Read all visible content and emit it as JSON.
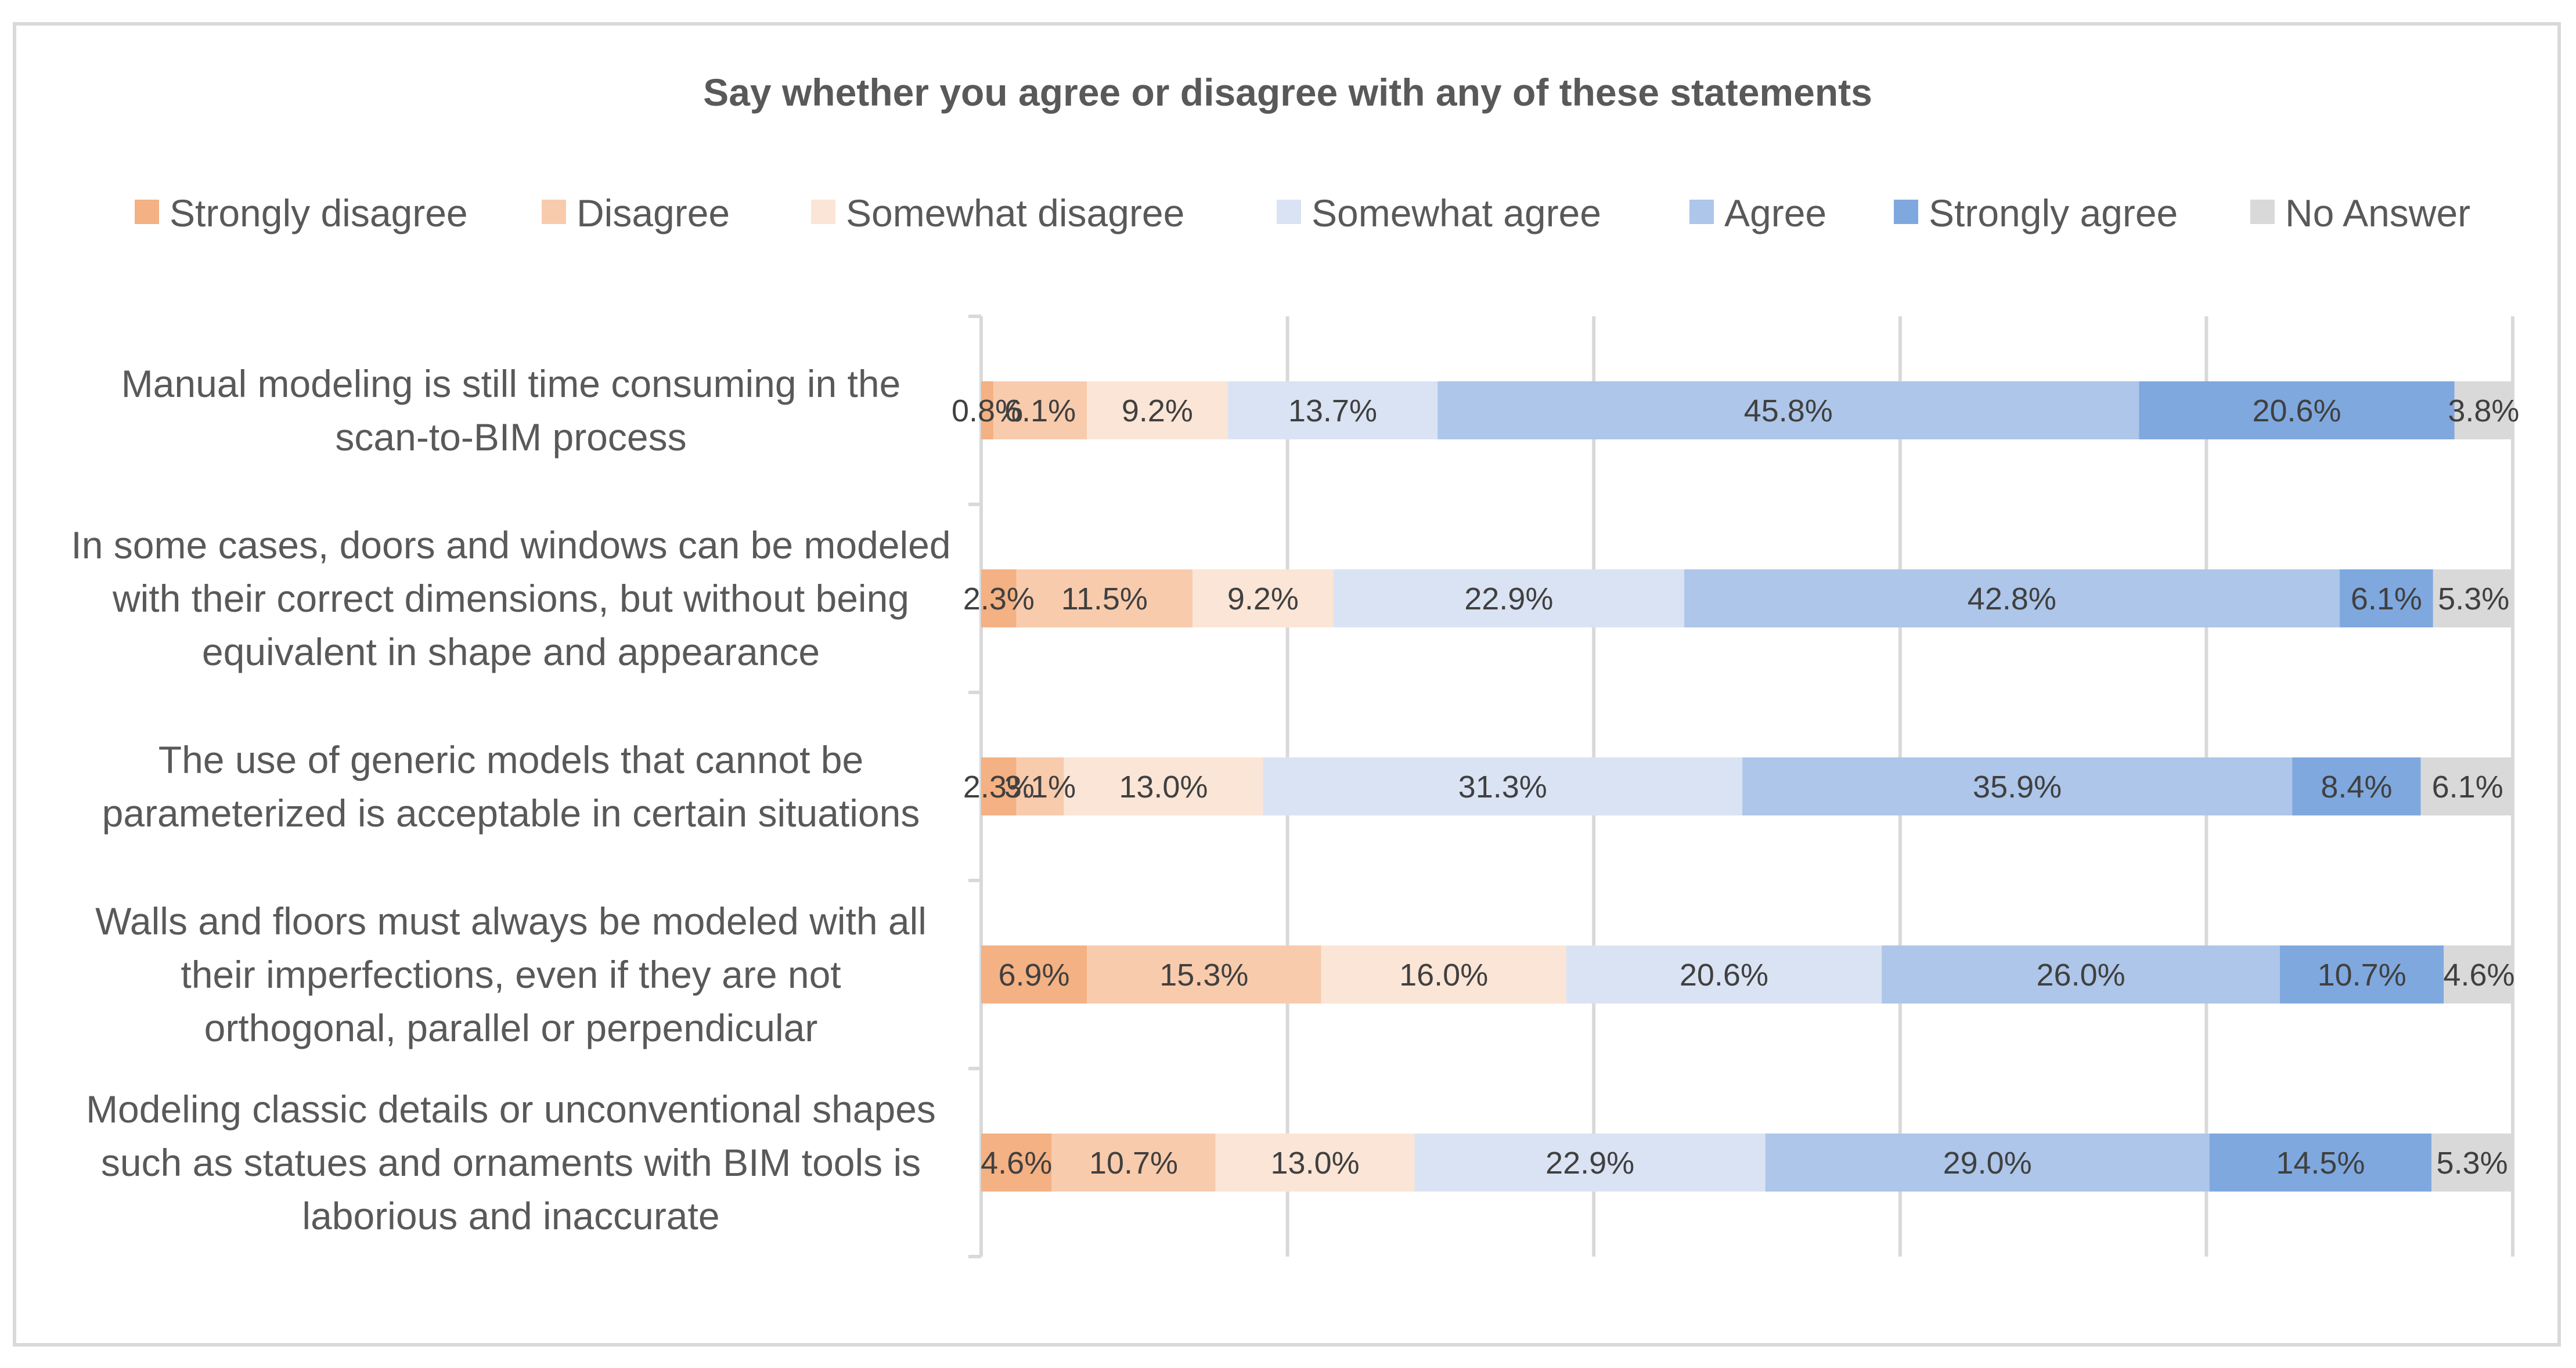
{
  "chart_data": {
    "type": "bar",
    "orientation": "horizontal",
    "stacked": "percent",
    "title": "Say whether you agree or disagree with any of these statements",
    "legend_position": "top",
    "grid": true,
    "xlim": [
      0,
      100
    ],
    "categories": [
      [
        "Manual modeling is still time consuming in the",
        "scan-to-BIM process"
      ],
      [
        "In some cases, doors and windows can be modeled",
        "with their correct dimensions, but without being",
        "equivalent in shape and appearance"
      ],
      [
        "The use of generic models that cannot be",
        "parameterized is acceptable in certain situations"
      ],
      [
        "Walls and floors must always be modeled with all",
        "their imperfections, even if they are not",
        "orthogonal, parallel or perpendicular"
      ],
      [
        "Modeling classic details or unconventional shapes",
        "such as statues and ornaments with BIM tools is",
        "laborious and inaccurate"
      ]
    ],
    "series": [
      {
        "name": "Strongly disagree",
        "color": "#f4b183",
        "values": [
          0.8,
          2.3,
          2.3,
          6.9,
          4.6
        ],
        "labels": [
          "0.8%",
          "2.3%",
          "2.3%",
          "6.9%",
          "4.6%"
        ]
      },
      {
        "name": "Disagree",
        "color": "#f8cbad",
        "values": [
          6.1,
          11.5,
          3.1,
          15.3,
          10.7
        ],
        "labels": [
          "6.1%",
          "11.5%",
          "3.1%",
          "15.3%",
          "10.7%"
        ]
      },
      {
        "name": "Somewhat disagree",
        "color": "#fbe5d6",
        "values": [
          9.2,
          9.2,
          13.0,
          16.0,
          13.0
        ],
        "labels": [
          "9.2%",
          "9.2%",
          "13.0%",
          "16.0%",
          "13.0%"
        ]
      },
      {
        "name": "Somewhat agree",
        "color": "#dae3f3",
        "values": [
          13.7,
          22.9,
          31.3,
          20.6,
          22.9
        ],
        "labels": [
          "13.7%",
          "22.9%",
          "31.3%",
          "20.6%",
          "22.9%"
        ]
      },
      {
        "name": "Agree",
        "color": "#adc6e9",
        "values": [
          45.8,
          42.8,
          35.9,
          26.0,
          29.0
        ],
        "labels": [
          "45.8%",
          "42.8%",
          "35.9%",
          "26.0%",
          "29.0%"
        ]
      },
      {
        "name": "Strongly agree",
        "color": "#7fa8de",
        "values": [
          20.6,
          6.1,
          8.4,
          10.7,
          14.5
        ],
        "labels": [
          "20.6%",
          "6.1%",
          "8.4%",
          "10.7%",
          "14.5%"
        ]
      },
      {
        "name": "No Answer",
        "color": "#d9d9d9",
        "values": [
          3.8,
          5.3,
          6.1,
          4.6,
          5.3
        ],
        "labels": [
          "3.8%",
          "5.3%",
          "6.1%",
          "4.6%",
          "5.3%"
        ]
      }
    ]
  }
}
